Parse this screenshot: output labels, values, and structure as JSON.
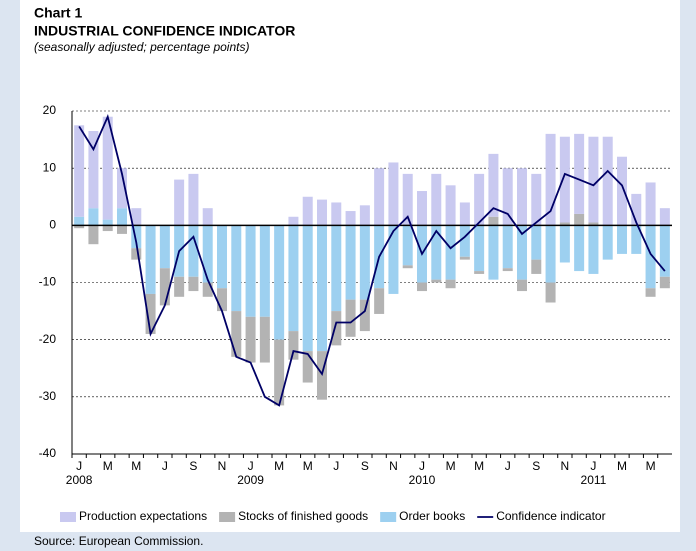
{
  "chart_data": {
    "type": "bar",
    "stacked": true,
    "title": "Chart 1",
    "subtitle": "INDUSTRIAL CONFIDENCE INDICATOR",
    "note": "(seasonally adjusted; percentage points)",
    "source": "Source: European Commission.",
    "categories": [
      "J",
      null,
      "M",
      null,
      "M",
      null,
      "J",
      null,
      "S",
      null,
      "N",
      null,
      "J",
      null,
      "M",
      null,
      "M",
      null,
      "J",
      null,
      "S",
      null,
      "N",
      null,
      "J",
      null,
      "M",
      null,
      "M",
      null,
      "J",
      null,
      "S",
      null,
      "N",
      null,
      "J",
      null,
      "M",
      null,
      "M",
      null
    ],
    "years": [
      "2008",
      "2009",
      "2010",
      "2011"
    ],
    "ylim": [
      -40,
      20
    ],
    "yticks": [
      -40,
      -30,
      -20,
      -10,
      0,
      10,
      20
    ],
    "grid": true,
    "series": [
      {
        "name": "Production expectations",
        "color": "#c9c9f0",
        "values": [
          16,
          13.5,
          18,
          7,
          3,
          0,
          0,
          8,
          9,
          3,
          0,
          0,
          0,
          0,
          0,
          1.5,
          5,
          4.5,
          4,
          2.5,
          3.5,
          10,
          11,
          9,
          6,
          9,
          7,
          4,
          9,
          11,
          10,
          10,
          9,
          16,
          15,
          14,
          15,
          15.5,
          12,
          5.5,
          7.5,
          3
        ]
      },
      {
        "name": "Stocks of finished goods",
        "color": "#b3b3b3",
        "values": [
          -0.5,
          -3.3,
          -1,
          -1.5,
          -2,
          -7,
          -6.5,
          -3.5,
          -2.5,
          -2.5,
          -4,
          -8,
          -8,
          -8,
          -11.5,
          -5,
          -5.5,
          -8.5,
          -6,
          -6.5,
          -5.5,
          -4.5,
          0,
          -0.5,
          -1.5,
          -0.5,
          -1.5,
          -0.5,
          -0.5,
          1.5,
          -0.5,
          -2,
          -2.5,
          -3.5,
          0.5,
          2,
          0.5,
          0,
          0,
          0,
          -1.5,
          -2
        ]
      },
      {
        "name": "Order books",
        "color": "#9dd0f0",
        "values": [
          1.5,
          3,
          1,
          3,
          -4,
          -12,
          -7.5,
          -9,
          -9,
          -10,
          -11,
          -15,
          -16,
          -16,
          -20,
          -18.5,
          -22,
          -22,
          -15,
          -13,
          -13,
          -11,
          -12,
          -7,
          -10,
          -9.5,
          -9.5,
          -5.5,
          -8,
          -9.5,
          -7.5,
          -9.5,
          -6,
          -10,
          -6.5,
          -8,
          -8.5,
          -6,
          -5,
          -5,
          -11,
          -9
        ]
      },
      {
        "name": "Confidence indicator",
        "type": "line",
        "color": "#000066",
        "values": [
          17.3,
          13.3,
          19,
          9,
          -3,
          -19,
          -14,
          -4.5,
          -2,
          -9.5,
          -15,
          -23,
          -24,
          -30,
          -31.5,
          -22,
          -22.5,
          -26,
          -17,
          -17,
          -15,
          -5.5,
          -1,
          1.5,
          -5,
          -1,
          -4,
          -2,
          0.5,
          3,
          2,
          -1.5,
          0.5,
          2.5,
          9,
          8,
          7,
          9.5,
          7,
          0.5,
          -5,
          -8
        ]
      }
    ]
  }
}
